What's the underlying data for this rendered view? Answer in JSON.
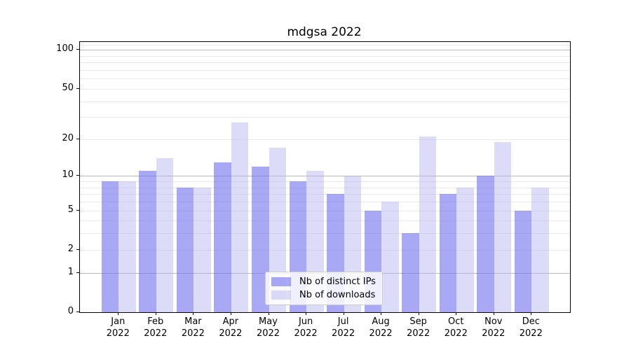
{
  "title": "mdgsa 2022",
  "chart_data": {
    "type": "bar",
    "title": "mdgsa 2022",
    "categories": [
      "Jan 2022",
      "Feb 2022",
      "Mar 2022",
      "Apr 2022",
      "May 2022",
      "Jun 2022",
      "Jul 2022",
      "Aug 2022",
      "Sep 2022",
      "Oct 2022",
      "Nov 2022",
      "Dec 2022"
    ],
    "series": [
      {
        "name": "Nb of distinct IPs",
        "values": [
          9,
          11,
          8,
          13,
          12,
          9,
          7,
          5,
          3,
          7,
          10,
          5
        ]
      },
      {
        "name": "Nb of downloads",
        "values": [
          9,
          14,
          8,
          27,
          17,
          11,
          10,
          6,
          21,
          8,
          19,
          8
        ]
      }
    ],
    "xlabel": "",
    "ylabel": "",
    "yscale": "log1p",
    "ylim": [
      0,
      115
    ],
    "y_ticks": [
      0,
      1,
      2,
      5,
      10,
      20,
      50,
      100
    ],
    "y_major_gridlines": [
      1,
      10,
      100
    ],
    "y_minor_gridlines": [
      2,
      3,
      4,
      5,
      6,
      7,
      8,
      9,
      20,
      30,
      40,
      50,
      60,
      70,
      80,
      90,
      110
    ],
    "grid": true,
    "legend_position": "lower center"
  },
  "colors": {
    "bar_ips": "rgba(110,110,238,0.6)",
    "bar_downloads": "rgba(178,178,240,0.45)",
    "grid_major": "#b9b9b9",
    "grid_minor": "#e9e9e9",
    "spine": "#000000"
  }
}
